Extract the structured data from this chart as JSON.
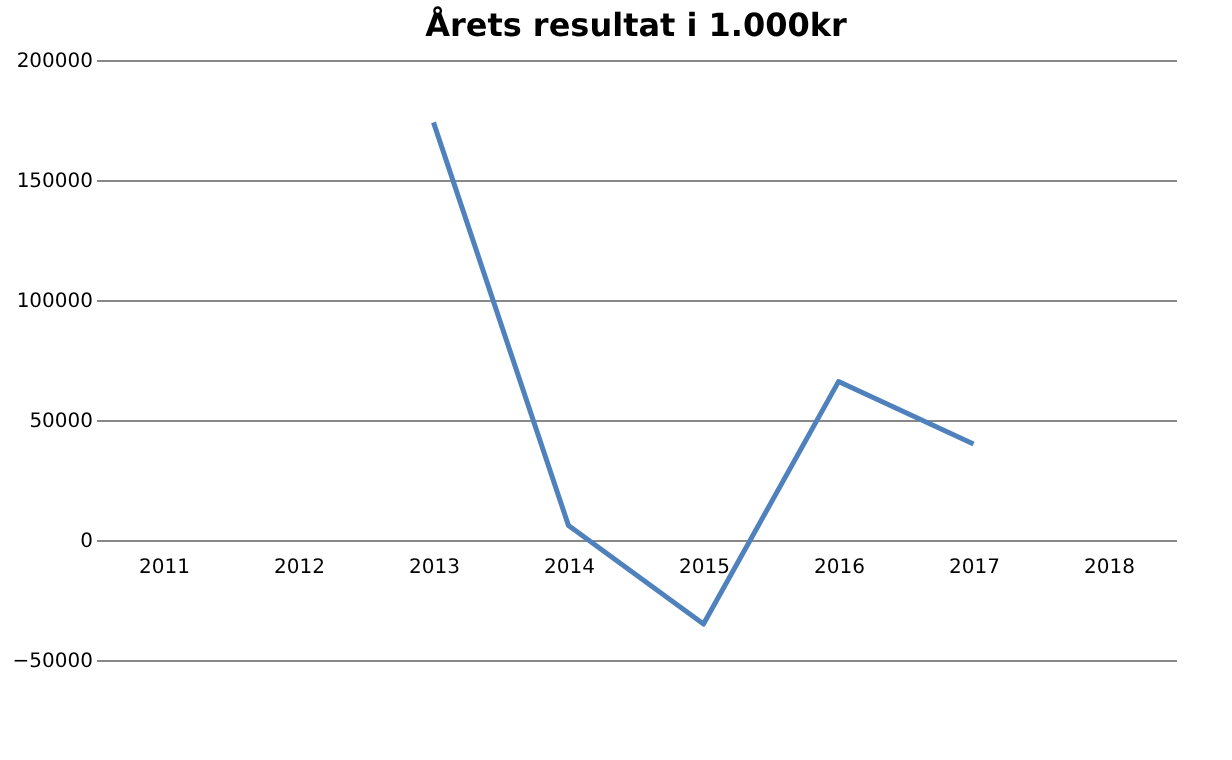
{
  "chart_data": {
    "type": "line",
    "title": "Årets resultat i 1.000kr",
    "categories": [
      "2011",
      "2012",
      "2013",
      "2014",
      "2015",
      "2016",
      "2017",
      "2018"
    ],
    "series": [
      {
        "color": "#4f81bd",
        "values": [
          null,
          null,
          174000,
          6000,
          -35000,
          66000,
          40000,
          null
        ]
      }
    ],
    "ylim": [
      -50000,
      200000
    ],
    "yticks": [
      -50000,
      0,
      50000,
      100000,
      150000,
      200000
    ],
    "grid": "y",
    "legend": false,
    "marker": "none",
    "line_style": "solid"
  }
}
